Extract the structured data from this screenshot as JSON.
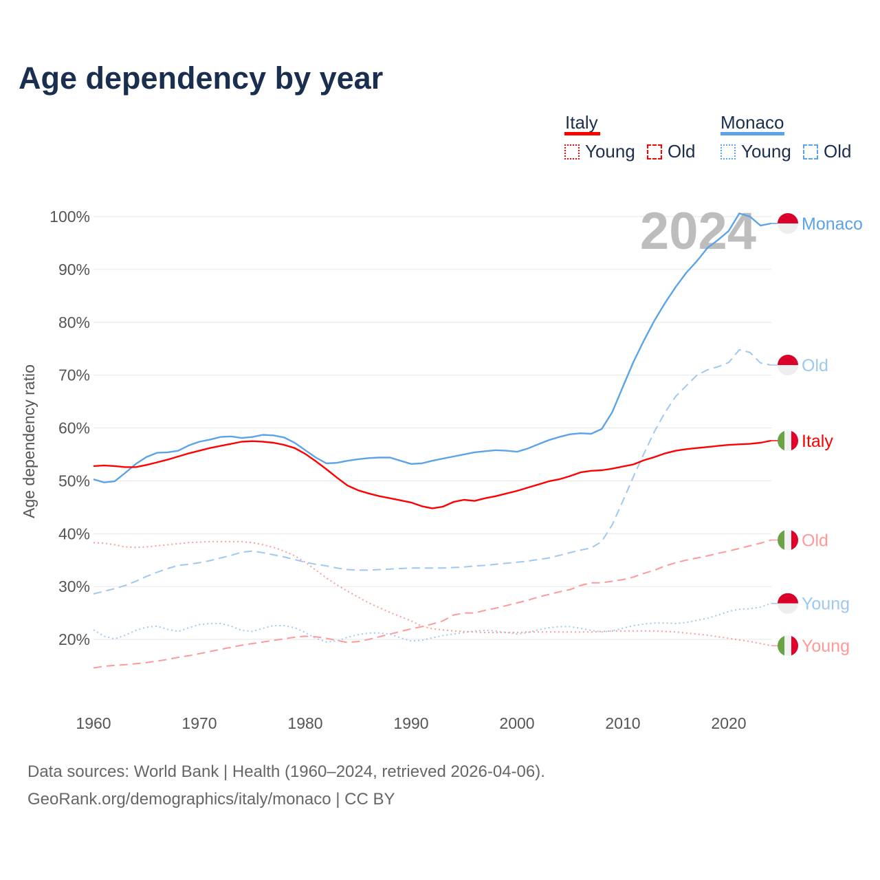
{
  "title": "Age dependency by year",
  "legend": {
    "groups": [
      {
        "name": "Italy",
        "color": "#ff0000",
        "items": [
          "Young",
          "Old"
        ],
        "light": "#ff0000"
      },
      {
        "name": "Monaco",
        "color": "#5ba3e8",
        "items": [
          "Young",
          "Old"
        ],
        "light": "#5ba3e8"
      }
    ]
  },
  "year_overlay": "2024",
  "footer": {
    "line1": "Data sources: World Bank | Health (1960–2024, retrieved 2026-04-06).",
    "line2": "GeoRank.org/demographics/italy/monaco | CC BY"
  },
  "chart_data": {
    "type": "line",
    "title": "Age dependency by year",
    "xlabel": "",
    "ylabel": "Age dependency ratio",
    "xlim": [
      1960,
      2024
    ],
    "ylim": [
      10,
      100
    ],
    "x_ticks": [
      "1960",
      "1970",
      "1980",
      "1990",
      "2000",
      "2010",
      "2020"
    ],
    "y_ticks": [
      "20%",
      "30%",
      "40%",
      "50%",
      "60%",
      "70%",
      "80%",
      "90%",
      "100%"
    ],
    "grid": true,
    "start_year": 1960,
    "series": [
      {
        "name": "Monaco",
        "label": "Monaco",
        "country": "Monaco",
        "kind": "total",
        "color": "#5ba3e8",
        "values": [
          50.3,
          49.7,
          49.9,
          51.5,
          53.2,
          54.5,
          55.3,
          55.4,
          55.7,
          56.7,
          57.4,
          57.8,
          58.3,
          58.4,
          58.1,
          58.3,
          58.7,
          58.6,
          58.2,
          57.2,
          55.8,
          54.4,
          53.3,
          53.4,
          53.8,
          54.1,
          54.3,
          54.4,
          54.4,
          53.8,
          53.2,
          53.3,
          53.8,
          54.2,
          54.6,
          55.0,
          55.4,
          55.6,
          55.8,
          55.7,
          55.5,
          56.1,
          56.9,
          57.7,
          58.3,
          58.8,
          59.0,
          58.9,
          59.8,
          63.0,
          67.8,
          72.5,
          76.6,
          80.4,
          83.7,
          86.7,
          89.4,
          91.6,
          94.1,
          95.6,
          97.3,
          100.6,
          100.0,
          98.3,
          98.7
        ]
      },
      {
        "name": "Monaco Old",
        "label": "Old",
        "country": "Monaco",
        "kind": "old",
        "color": "#9fc8f0",
        "values": [
          28.6,
          29.1,
          29.6,
          30.2,
          31.0,
          31.9,
          32.7,
          33.4,
          34.0,
          34.2,
          34.5,
          34.9,
          35.4,
          35.9,
          36.5,
          36.7,
          36.4,
          36.0,
          35.6,
          35.1,
          34.6,
          34.2,
          33.9,
          33.5,
          33.2,
          33.1,
          33.1,
          33.2,
          33.3,
          33.4,
          33.5,
          33.5,
          33.5,
          33.5,
          33.6,
          33.7,
          33.9,
          34.0,
          34.2,
          34.4,
          34.6,
          34.8,
          35.1,
          35.4,
          35.9,
          36.4,
          36.9,
          37.3,
          38.5,
          41.7,
          46.2,
          50.8,
          55.2,
          59.4,
          63.0,
          66.0,
          68.0,
          70.0,
          71.0,
          71.6,
          72.4,
          74.8,
          74.3,
          72.3,
          71.9
        ]
      },
      {
        "name": "Italy",
        "label": "Italy",
        "country": "Italy",
        "kind": "total",
        "color": "#ff0000",
        "values": [
          52.8,
          52.9,
          52.8,
          52.6,
          52.6,
          53.0,
          53.5,
          54.0,
          54.6,
          55.2,
          55.7,
          56.2,
          56.6,
          57.0,
          57.4,
          57.5,
          57.4,
          57.2,
          56.8,
          56.2,
          55.1,
          53.7,
          52.2,
          50.6,
          49.1,
          48.2,
          47.6,
          47.1,
          46.7,
          46.3,
          45.9,
          45.2,
          44.8,
          45.1,
          46.0,
          46.4,
          46.2,
          46.7,
          47.1,
          47.6,
          48.1,
          48.7,
          49.3,
          49.9,
          50.3,
          50.9,
          51.6,
          51.9,
          52.0,
          52.3,
          52.7,
          53.1,
          53.9,
          54.5,
          55.2,
          55.7,
          56.0,
          56.2,
          56.4,
          56.6,
          56.8,
          56.9,
          57.0,
          57.2,
          57.6
        ]
      },
      {
        "name": "Italy Old",
        "label": "Old",
        "country": "Italy",
        "kind": "old",
        "color": "#ff9999",
        "values": [
          14.6,
          14.9,
          15.1,
          15.2,
          15.4,
          15.6,
          15.9,
          16.2,
          16.6,
          16.9,
          17.3,
          17.7,
          18.1,
          18.5,
          18.9,
          19.2,
          19.5,
          19.8,
          20.1,
          20.4,
          20.6,
          20.5,
          20.2,
          19.8,
          19.4,
          19.6,
          20.0,
          20.5,
          21.0,
          21.5,
          22.0,
          22.4,
          22.9,
          23.5,
          24.6,
          25.0,
          25.0,
          25.5,
          25.9,
          26.4,
          26.9,
          27.4,
          28.0,
          28.5,
          29.0,
          29.4,
          30.2,
          30.7,
          30.7,
          31.0,
          31.3,
          31.8,
          32.5,
          33.1,
          33.9,
          34.5,
          35.0,
          35.4,
          35.8,
          36.3,
          36.7,
          37.2,
          37.7,
          38.2,
          38.8
        ]
      },
      {
        "name": "Monaco Young",
        "label": "Young",
        "country": "Monaco",
        "kind": "young",
        "color": "#9fc8f0",
        "values": [
          21.8,
          20.6,
          20.1,
          20.8,
          21.7,
          22.3,
          22.5,
          21.9,
          21.5,
          22.2,
          22.8,
          23.0,
          23.0,
          22.5,
          21.7,
          21.5,
          22.1,
          22.6,
          22.6,
          22.2,
          21.3,
          20.2,
          19.5,
          19.7,
          20.4,
          20.9,
          21.2,
          21.2,
          21.0,
          20.3,
          19.7,
          19.8,
          20.3,
          20.7,
          21.0,
          21.3,
          21.6,
          21.7,
          21.6,
          21.3,
          21.0,
          21.3,
          21.8,
          22.2,
          22.4,
          22.4,
          22.1,
          21.7,
          21.4,
          21.6,
          22.1,
          22.6,
          22.9,
          23.1,
          23.1,
          23.0,
          23.2,
          23.6,
          24.0,
          24.6,
          25.3,
          25.7,
          25.8,
          26.1,
          26.8
        ]
      },
      {
        "name": "Italy Young",
        "label": "Young",
        "country": "Italy",
        "kind": "young",
        "color": "#ff9999",
        "values": [
          38.3,
          38.2,
          37.9,
          37.5,
          37.4,
          37.5,
          37.7,
          37.9,
          38.1,
          38.3,
          38.4,
          38.5,
          38.5,
          38.5,
          38.5,
          38.3,
          37.9,
          37.4,
          36.7,
          35.8,
          34.6,
          33.1,
          31.6,
          30.3,
          29.1,
          28.0,
          26.9,
          26.0,
          25.1,
          24.3,
          23.5,
          22.5,
          22.0,
          21.8,
          21.6,
          21.5,
          21.4,
          21.3,
          21.3,
          21.3,
          21.3,
          21.4,
          21.4,
          21.4,
          21.4,
          21.4,
          21.4,
          21.4,
          21.5,
          21.6,
          21.6,
          21.6,
          21.6,
          21.6,
          21.5,
          21.4,
          21.2,
          21.0,
          20.8,
          20.5,
          20.2,
          19.9,
          19.6,
          19.2,
          18.8
        ]
      }
    ]
  }
}
